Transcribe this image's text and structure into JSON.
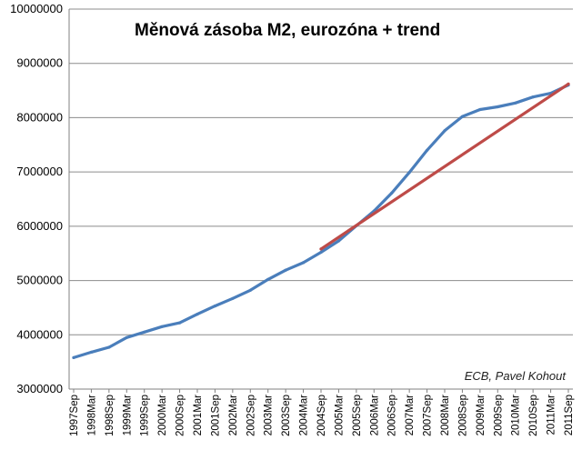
{
  "chart_data": {
    "type": "line",
    "title": "Měnová zásoba M2, eurozóna + trend",
    "annotation": "ECB, Pavel Kohout",
    "xlabel": "",
    "ylabel": "",
    "ylim": [
      3000000,
      10000000
    ],
    "yticks": [
      3000000,
      4000000,
      5000000,
      6000000,
      7000000,
      8000000,
      9000000,
      10000000
    ],
    "ytick_labels": [
      "3000000",
      "4000000",
      "5000000",
      "6000000",
      "7000000",
      "8000000",
      "9000000",
      "10000000"
    ],
    "x_labels": [
      "1997Sep",
      "1998Mar",
      "1998Sep",
      "1999Mar",
      "1999Sep",
      "2000Mar",
      "2000Sep",
      "2001Mar",
      "2001Sep",
      "2002Mar",
      "2002Sep",
      "2003Mar",
      "2003Sep",
      "2004Mar",
      "2004Sep",
      "2005Mar",
      "2005Sep",
      "2006Mar",
      "2006Sep",
      "2007Mar",
      "2007Sep",
      "2008Mar",
      "2008Sep",
      "2009Mar",
      "2009Sep",
      "2010Mar",
      "2010Sep",
      "2011Mar",
      "2011Sep"
    ],
    "grid": true,
    "legend": "none",
    "series": [
      {
        "color": "#4a7ebb",
        "x": [
          "1997Sep",
          "1998Mar",
          "1998Sep",
          "1999Mar",
          "1999Sep",
          "2000Mar",
          "2000Sep",
          "2001Mar",
          "2001Sep",
          "2002Mar",
          "2002Sep",
          "2003Mar",
          "2003Sep",
          "2004Mar",
          "2004Sep",
          "2005Mar",
          "2005Sep",
          "2006Mar",
          "2006Sep",
          "2007Mar",
          "2007Sep",
          "2008Mar",
          "2008Sep",
          "2009Mar",
          "2009Sep",
          "2010Mar",
          "2010Sep",
          "2011Mar",
          "2011Sep"
        ],
        "values": [
          3580000,
          3680000,
          3770000,
          3950000,
          4050000,
          4150000,
          4220000,
          4380000,
          4530000,
          4670000,
          4820000,
          5020000,
          5190000,
          5330000,
          5520000,
          5730000,
          6010000,
          6280000,
          6610000,
          6990000,
          7400000,
          7760000,
          8020000,
          8150000,
          8200000,
          8270000,
          8380000,
          8450000,
          8600000
        ]
      },
      {
        "color": "#be4b48",
        "x": [
          "2004Sep",
          "2011Sep"
        ],
        "values": [
          5580000,
          8620000
        ]
      }
    ]
  }
}
